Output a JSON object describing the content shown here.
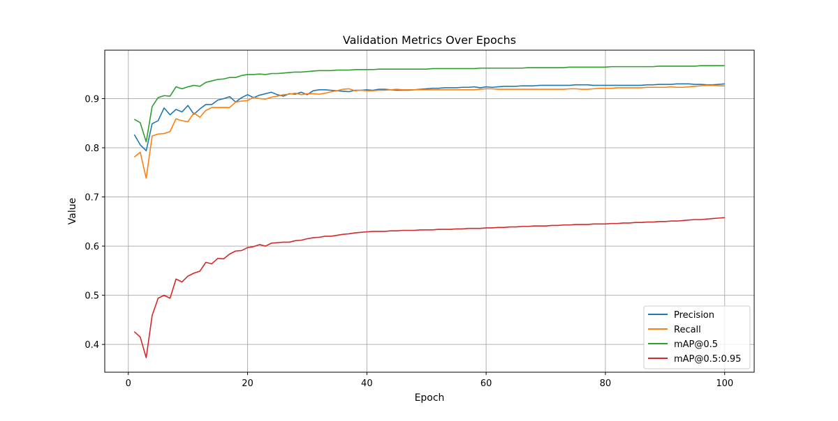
{
  "chart_data": {
    "type": "line",
    "title": "Validation Metrics Over Epochs",
    "xlabel": "Epoch",
    "ylabel": "Value",
    "xlim": [
      -3.95,
      104.95
    ],
    "ylim": [
      0.3435,
      0.9985
    ],
    "xticks": [
      0,
      20,
      40,
      60,
      80,
      100
    ],
    "yticks": [
      0.4,
      0.5,
      0.6,
      0.7,
      0.8,
      0.9
    ],
    "grid": true,
    "legend_position": "lower-right",
    "x": [
      1,
      2,
      3,
      4,
      5,
      6,
      7,
      8,
      9,
      10,
      11,
      12,
      13,
      14,
      15,
      16,
      17,
      18,
      19,
      20,
      21,
      22,
      23,
      24,
      25,
      26,
      27,
      28,
      29,
      30,
      31,
      32,
      33,
      34,
      35,
      36,
      37,
      38,
      39,
      40,
      41,
      42,
      43,
      44,
      45,
      46,
      47,
      48,
      49,
      50,
      51,
      52,
      53,
      54,
      55,
      56,
      57,
      58,
      59,
      60,
      61,
      62,
      63,
      64,
      65,
      66,
      67,
      68,
      69,
      70,
      71,
      72,
      73,
      74,
      75,
      76,
      77,
      78,
      79,
      80,
      81,
      82,
      83,
      84,
      85,
      86,
      87,
      88,
      89,
      90,
      91,
      92,
      93,
      94,
      95,
      96,
      97,
      98,
      99,
      100
    ],
    "series": [
      {
        "name": "Precision",
        "color": "#1f77b4",
        "values": [
          0.827,
          0.806,
          0.794,
          0.849,
          0.855,
          0.881,
          0.867,
          0.878,
          0.873,
          0.886,
          0.868,
          0.879,
          0.888,
          0.888,
          0.897,
          0.9,
          0.904,
          0.893,
          0.902,
          0.908,
          0.902,
          0.907,
          0.91,
          0.913,
          0.908,
          0.905,
          0.91,
          0.909,
          0.913,
          0.908,
          0.916,
          0.918,
          0.918,
          0.917,
          0.916,
          0.915,
          0.914,
          0.917,
          0.917,
          0.918,
          0.917,
          0.919,
          0.919,
          0.918,
          0.917,
          0.917,
          0.917,
          0.918,
          0.919,
          0.92,
          0.921,
          0.921,
          0.922,
          0.922,
          0.922,
          0.923,
          0.923,
          0.924,
          0.922,
          0.924,
          0.923,
          0.924,
          0.925,
          0.925,
          0.925,
          0.926,
          0.926,
          0.926,
          0.927,
          0.927,
          0.927,
          0.927,
          0.927,
          0.927,
          0.928,
          0.928,
          0.928,
          0.927,
          0.927,
          0.927,
          0.927,
          0.927,
          0.927,
          0.927,
          0.927,
          0.927,
          0.928,
          0.928,
          0.929,
          0.929,
          0.929,
          0.93,
          0.93,
          0.93,
          0.929,
          0.929,
          0.928,
          0.928,
          0.929,
          0.93
        ]
      },
      {
        "name": "Recall",
        "color": "#ff7f0e",
        "values": [
          0.781,
          0.791,
          0.738,
          0.824,
          0.828,
          0.829,
          0.833,
          0.859,
          0.855,
          0.853,
          0.871,
          0.862,
          0.876,
          0.882,
          0.882,
          0.882,
          0.882,
          0.893,
          0.895,
          0.896,
          0.903,
          0.9,
          0.899,
          0.903,
          0.905,
          0.908,
          0.909,
          0.911,
          0.908,
          0.91,
          0.91,
          0.909,
          0.911,
          0.914,
          0.916,
          0.919,
          0.92,
          0.916,
          0.917,
          0.916,
          0.916,
          0.917,
          0.917,
          0.918,
          0.919,
          0.918,
          0.918,
          0.918,
          0.918,
          0.918,
          0.918,
          0.918,
          0.918,
          0.918,
          0.918,
          0.918,
          0.918,
          0.918,
          0.919,
          0.92,
          0.92,
          0.919,
          0.919,
          0.919,
          0.919,
          0.919,
          0.919,
          0.919,
          0.919,
          0.919,
          0.919,
          0.919,
          0.919,
          0.92,
          0.92,
          0.919,
          0.919,
          0.92,
          0.921,
          0.921,
          0.921,
          0.922,
          0.922,
          0.922,
          0.922,
          0.922,
          0.923,
          0.923,
          0.923,
          0.923,
          0.924,
          0.923,
          0.923,
          0.924,
          0.925,
          0.926,
          0.927,
          0.927,
          0.926,
          0.926
        ]
      },
      {
        "name": "mAP@0.5",
        "color": "#2ca02c",
        "values": [
          0.858,
          0.851,
          0.812,
          0.884,
          0.902,
          0.906,
          0.905,
          0.924,
          0.92,
          0.924,
          0.927,
          0.925,
          0.933,
          0.936,
          0.939,
          0.94,
          0.943,
          0.943,
          0.947,
          0.949,
          0.949,
          0.95,
          0.949,
          0.951,
          0.951,
          0.952,
          0.953,
          0.954,
          0.954,
          0.955,
          0.956,
          0.957,
          0.957,
          0.957,
          0.958,
          0.958,
          0.958,
          0.959,
          0.959,
          0.959,
          0.959,
          0.96,
          0.96,
          0.96,
          0.96,
          0.96,
          0.96,
          0.96,
          0.96,
          0.96,
          0.961,
          0.961,
          0.961,
          0.961,
          0.961,
          0.961,
          0.961,
          0.961,
          0.962,
          0.962,
          0.962,
          0.962,
          0.962,
          0.962,
          0.962,
          0.962,
          0.963,
          0.963,
          0.963,
          0.963,
          0.963,
          0.963,
          0.963,
          0.964,
          0.964,
          0.964,
          0.964,
          0.964,
          0.964,
          0.964,
          0.965,
          0.965,
          0.965,
          0.965,
          0.965,
          0.965,
          0.965,
          0.965,
          0.966,
          0.966,
          0.966,
          0.966,
          0.966,
          0.966,
          0.966,
          0.967,
          0.967,
          0.967,
          0.967,
          0.967
        ]
      },
      {
        "name": "mAP@0.5:0.95",
        "color": "#d62728",
        "values": [
          0.426,
          0.415,
          0.373,
          0.459,
          0.494,
          0.5,
          0.494,
          0.533,
          0.527,
          0.539,
          0.545,
          0.549,
          0.567,
          0.564,
          0.575,
          0.574,
          0.584,
          0.59,
          0.591,
          0.597,
          0.599,
          0.603,
          0.6,
          0.606,
          0.607,
          0.608,
          0.608,
          0.611,
          0.612,
          0.615,
          0.617,
          0.618,
          0.62,
          0.62,
          0.622,
          0.624,
          0.625,
          0.627,
          0.628,
          0.629,
          0.63,
          0.63,
          0.63,
          0.631,
          0.631,
          0.632,
          0.632,
          0.632,
          0.633,
          0.633,
          0.633,
          0.634,
          0.634,
          0.634,
          0.635,
          0.635,
          0.636,
          0.636,
          0.636,
          0.637,
          0.637,
          0.638,
          0.638,
          0.639,
          0.639,
          0.64,
          0.64,
          0.641,
          0.641,
          0.641,
          0.642,
          0.642,
          0.643,
          0.643,
          0.644,
          0.644,
          0.644,
          0.645,
          0.645,
          0.645,
          0.646,
          0.646,
          0.647,
          0.647,
          0.648,
          0.648,
          0.649,
          0.649,
          0.65,
          0.65,
          0.651,
          0.651,
          0.652,
          0.653,
          0.654,
          0.654,
          0.655,
          0.656,
          0.657,
          0.658
        ]
      }
    ]
  }
}
